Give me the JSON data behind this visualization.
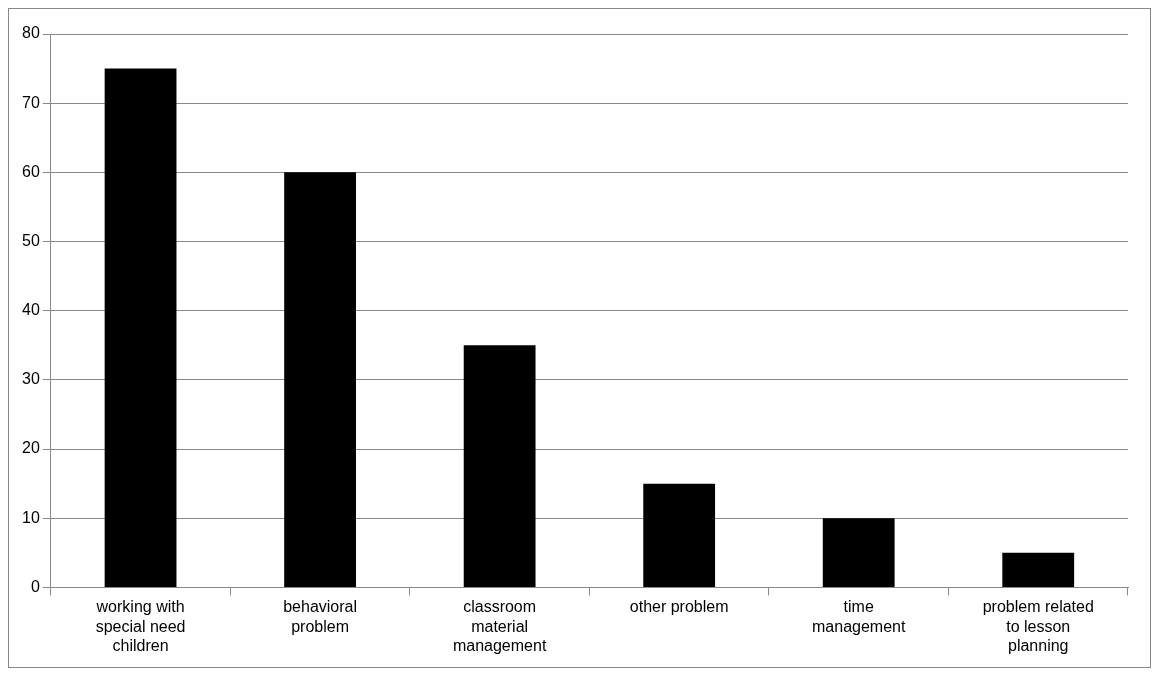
{
  "chart_data": {
    "type": "bar",
    "categories": [
      "working with special need children",
      "behavioral problem",
      "classroom material management",
      "other problem",
      "time management",
      "problem related to lesson planning"
    ],
    "values": [
      75,
      60,
      35,
      15,
      10,
      5
    ],
    "color": "#000000",
    "ylim": [
      0,
      80
    ],
    "yticks": [
      0,
      10,
      20,
      30,
      40,
      50,
      60,
      70,
      80
    ],
    "grid": "y",
    "legend": false
  }
}
